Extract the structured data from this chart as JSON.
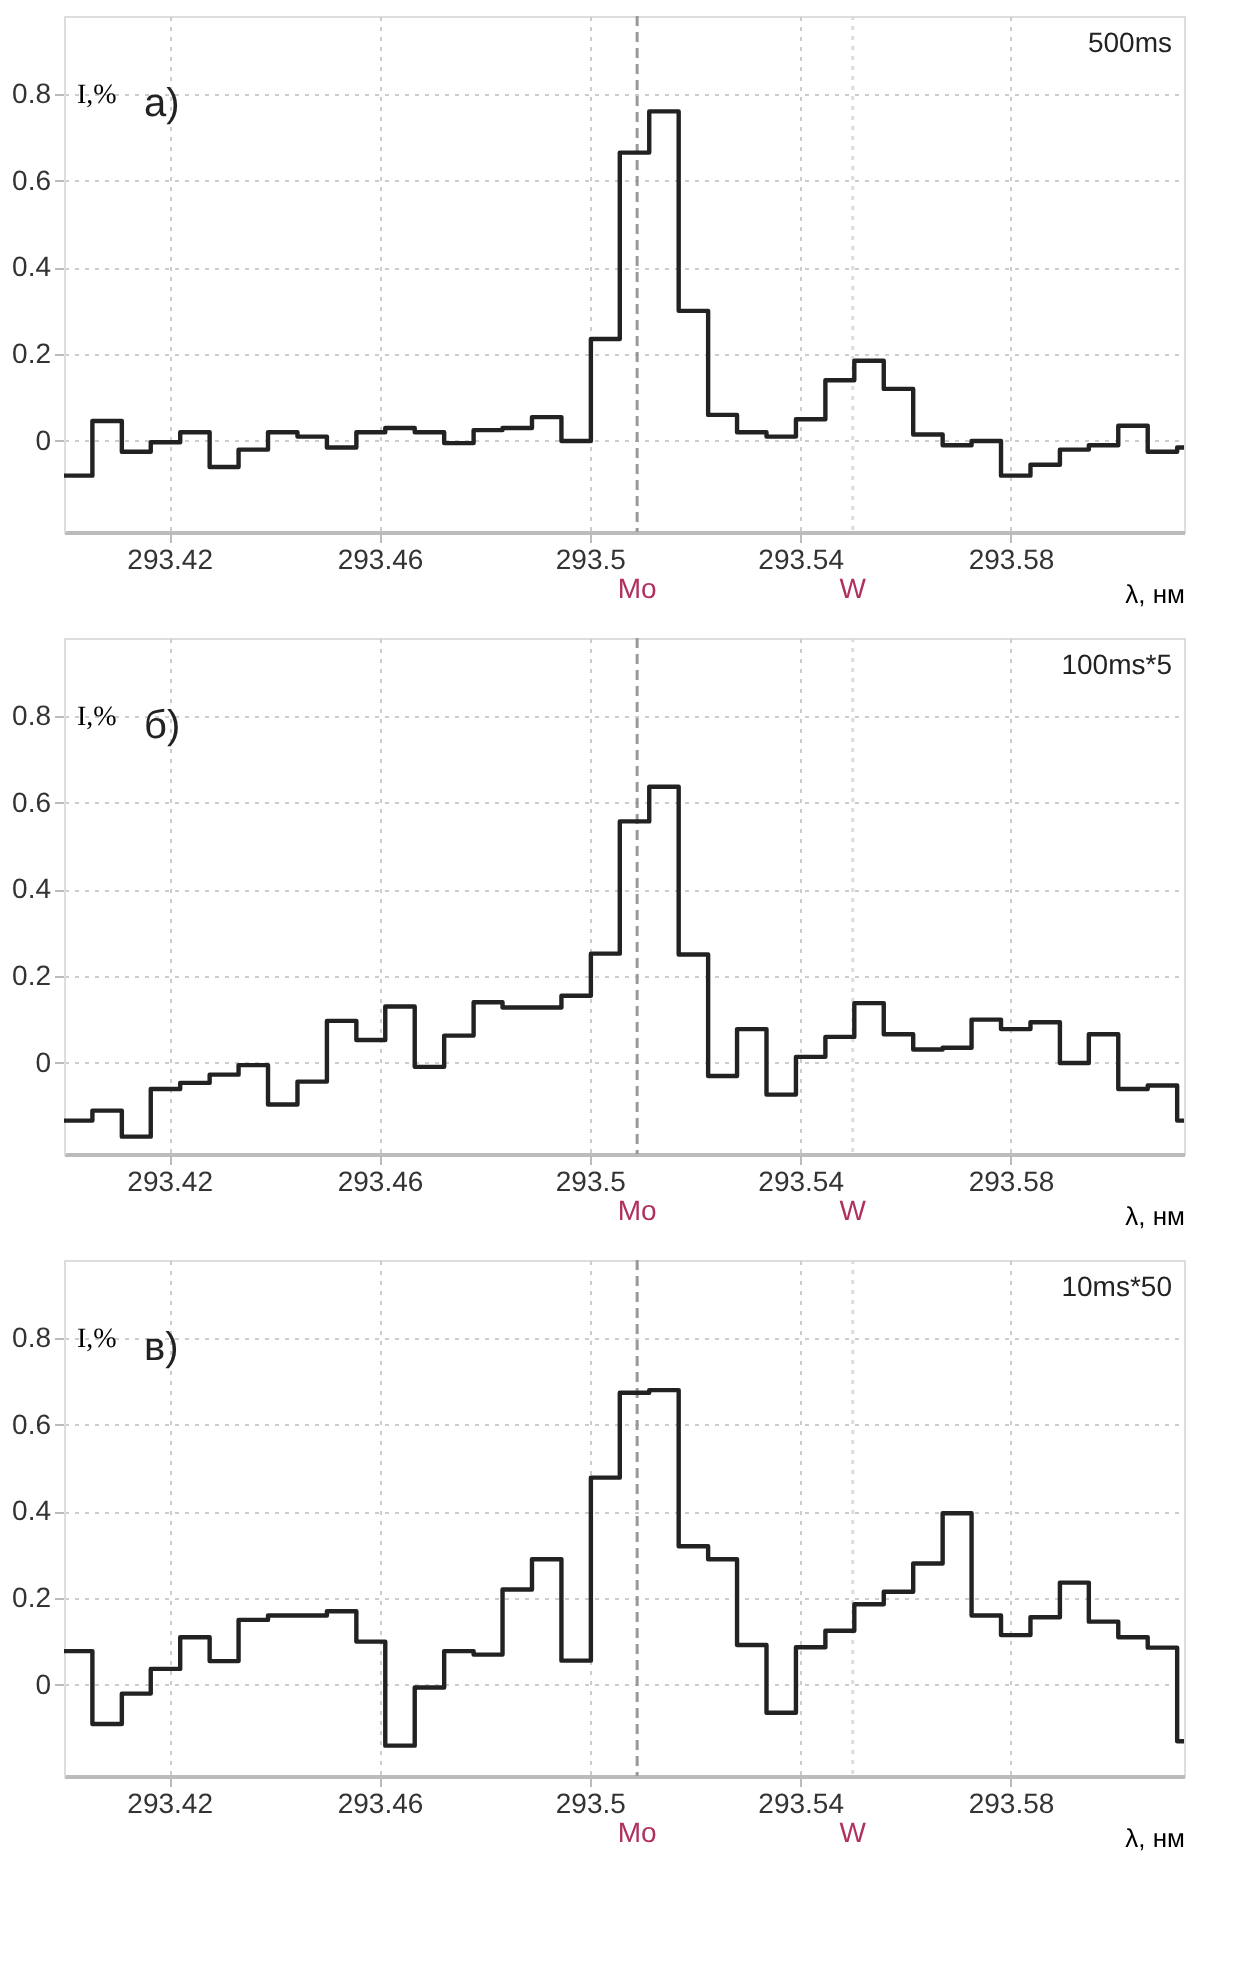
{
  "chart_data": [
    {
      "type": "step",
      "xlabel": "λ, нм",
      "ylabel": "I,%",
      "annotations": [
        "а)",
        "500ms"
      ],
      "xlim": [
        293.4,
        293.613
      ],
      "ylim": [
        -0.21,
        0.98
      ],
      "xticks": [
        293.42,
        293.46,
        293.5,
        293.54,
        293.58
      ],
      "yticks": [
        0,
        0.2,
        0.4,
        0.6,
        0.8
      ],
      "grid": true,
      "x": [
        293.4,
        293.4054,
        293.411,
        293.4165,
        293.4221,
        293.4277,
        293.4332,
        293.4388,
        293.4444,
        293.45,
        293.4556,
        293.4611,
        293.4667,
        293.4723,
        293.4779,
        293.4834,
        293.489,
        293.4946,
        293.5002,
        293.5057,
        293.5113,
        293.5169,
        293.5225,
        293.528,
        293.5336,
        293.5392,
        293.5448,
        293.5503,
        293.5559,
        293.5615,
        293.5671,
        293.5726,
        293.5782,
        293.5838,
        293.5894,
        293.5949,
        293.6005,
        293.6061,
        293.6117,
        293.613
      ],
      "series": [
        {
          "color": "#222222",
          "values": [
            -0.08,
            0.046,
            -0.025,
            -0.003,
            0.02,
            -0.06,
            -0.02,
            0.02,
            0.01,
            -0.015,
            0.02,
            0.03,
            0.02,
            -0.005,
            0.025,
            0.03,
            0.055,
            0.0,
            0.235,
            0.665,
            0.76,
            0.3,
            0.06,
            0.02,
            0.01,
            0.05,
            0.14,
            0.185,
            0.12,
            0.015,
            -0.01,
            0.0,
            -0.08,
            -0.055,
            -0.02,
            -0.01,
            0.035,
            -0.025,
            -0.015,
            -0.015
          ]
        }
      ],
      "ref_lines": [
        {
          "axis": "x",
          "value": 293.509,
          "label": "Mo",
          "color": "#999999",
          "line_style": "dashed"
        },
        {
          "axis": "x",
          "value": 293.55,
          "label": "W",
          "color": "#dddddd",
          "line_style": "dotted"
        }
      ]
    },
    {
      "type": "step",
      "xlabel": "λ, нм",
      "ylabel": "I,%",
      "annotations": [
        "б)",
        "100ms*5"
      ],
      "xlim": [
        293.4,
        293.613
      ],
      "ylim": [
        -0.21,
        0.98
      ],
      "xticks": [
        293.42,
        293.46,
        293.5,
        293.54,
        293.58
      ],
      "yticks": [
        0,
        0.2,
        0.4,
        0.6,
        0.8
      ],
      "grid": true,
      "x": [
        293.4,
        293.4054,
        293.411,
        293.4165,
        293.4221,
        293.4277,
        293.4332,
        293.4388,
        293.4444,
        293.45,
        293.4556,
        293.4611,
        293.4667,
        293.4723,
        293.4779,
        293.4834,
        293.489,
        293.4946,
        293.5002,
        293.5057,
        293.5113,
        293.5169,
        293.5225,
        293.528,
        293.5336,
        293.5392,
        293.5448,
        293.5503,
        293.5559,
        293.5615,
        293.5671,
        293.5726,
        293.5782,
        293.5838,
        293.5894,
        293.5949,
        293.6005,
        293.6061,
        293.6117,
        293.613
      ],
      "series": [
        {
          "color": "#222222",
          "values": [
            -0.133,
            -0.11,
            -0.17,
            -0.06,
            -0.046,
            -0.027,
            -0.005,
            -0.096,
            -0.043,
            0.097,
            0.053,
            0.13,
            -0.009,
            0.063,
            0.14,
            0.128,
            0.128,
            0.155,
            0.252,
            0.557,
            0.637,
            0.25,
            -0.03,
            0.078,
            -0.073,
            0.014,
            0.06,
            0.138,
            0.066,
            0.031,
            0.035,
            0.1,
            0.078,
            0.094,
            0.0,
            0.066,
            -0.06,
            -0.052,
            -0.133,
            -0.133
          ]
        }
      ],
      "ref_lines": [
        {
          "axis": "x",
          "value": 293.509,
          "label": "Mo",
          "color": "#999999",
          "line_style": "dashed"
        },
        {
          "axis": "x",
          "value": 293.55,
          "label": "W",
          "color": "#dddddd",
          "line_style": "dotted"
        }
      ]
    },
    {
      "type": "step",
      "xlabel": "λ, нм",
      "ylabel": "I,%",
      "annotations": [
        "в)",
        "10ms*50"
      ],
      "xlim": [
        293.4,
        293.613
      ],
      "ylim": [
        -0.21,
        0.98
      ],
      "xticks": [
        293.42,
        293.46,
        293.5,
        293.54,
        293.58
      ],
      "yticks": [
        0,
        0.2,
        0.4,
        0.6,
        0.8
      ],
      "grid": true,
      "x": [
        293.4,
        293.4054,
        293.411,
        293.4165,
        293.4221,
        293.4277,
        293.4332,
        293.4388,
        293.4444,
        293.45,
        293.4556,
        293.4611,
        293.4667,
        293.4723,
        293.4779,
        293.4834,
        293.489,
        293.4946,
        293.5002,
        293.5057,
        293.5113,
        293.5169,
        293.5225,
        293.528,
        293.5336,
        293.5392,
        293.5448,
        293.5503,
        293.5559,
        293.5615,
        293.5671,
        293.5726,
        293.5782,
        293.5838,
        293.5894,
        293.5949,
        293.6005,
        293.6061,
        293.6117,
        293.613
      ],
      "series": [
        {
          "color": "#222222",
          "values": [
            0.078,
            -0.09,
            -0.02,
            0.037,
            0.11,
            0.055,
            0.15,
            0.16,
            0.16,
            0.17,
            0.1,
            -0.14,
            -0.006,
            0.078,
            0.07,
            0.22,
            0.29,
            0.056,
            0.478,
            0.674,
            0.68,
            0.32,
            0.29,
            0.092,
            -0.064,
            0.087,
            0.125,
            0.186,
            0.215,
            0.28,
            0.396,
            0.16,
            0.115,
            0.156,
            0.236,
            0.146,
            0.11,
            0.086,
            -0.13,
            -0.13
          ]
        }
      ],
      "ref_lines": [
        {
          "axis": "x",
          "value": 293.509,
          "label": "Mo",
          "color": "#999999",
          "line_style": "dashed"
        },
        {
          "axis": "x",
          "value": 293.55,
          "label": "W",
          "color": "#dddddd",
          "line_style": "dotted"
        }
      ]
    }
  ]
}
